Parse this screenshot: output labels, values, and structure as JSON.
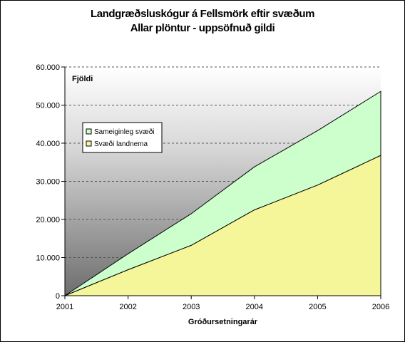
{
  "title_line1": "Landgræðsluskógur á Fellsmörk eftir svæðum",
  "title_line2": "Allar plöntur - uppsöfnuð gildi",
  "chart_data": {
    "type": "area",
    "stacked": true,
    "title": "Landgræðsluskógur á Fellsmörk eftir svæðum / Allar plöntur - uppsöfnuð gildi",
    "xlabel": "Gróðursetningarár",
    "ylabel": "Fjöldi",
    "categories": [
      "2001",
      "2002",
      "2003",
      "2004",
      "2005",
      "2006"
    ],
    "ylim": [
      0,
      60000
    ],
    "yticks": [
      "0",
      "10.000",
      "20.000",
      "30.000",
      "40.000",
      "50.000",
      "60.000"
    ],
    "grid": "horizontal dashed",
    "legend_position": "upper-left inside plot",
    "series": [
      {
        "name": "Svæði landnema",
        "values": [
          0,
          6800,
          13200,
          22500,
          29000,
          36800
        ],
        "color": "#f5f59a"
      },
      {
        "name": "Sameiginleg svæði",
        "values": [
          0,
          4200,
          8300,
          11300,
          14300,
          16800
        ],
        "color": "#ccffcc"
      }
    ],
    "legend": [
      "Sameiginleg svæði",
      "Svæði landnema"
    ]
  }
}
